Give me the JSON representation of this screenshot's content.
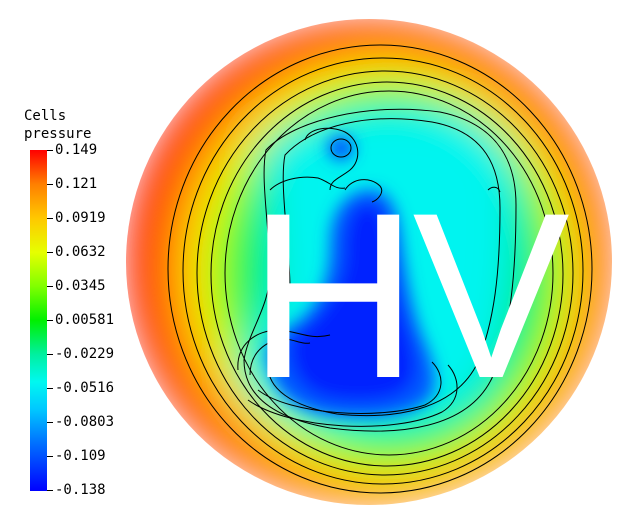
{
  "legend": {
    "title": "Cells\npressure",
    "ticks": [
      "0.149",
      "0.121",
      "0.0919",
      "0.0632",
      "0.0345",
      "0.00581",
      "-0.0229",
      "-0.0516",
      "-0.0803",
      "-0.109",
      "-0.138"
    ]
  },
  "watermark": "HV",
  "colors": {
    "max": "#ff0000",
    "mid": "#00f000",
    "min": "#0000ff",
    "contour": "#000000"
  }
}
